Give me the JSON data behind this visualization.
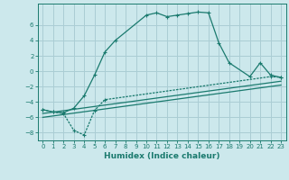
{
  "xlabel": "Humidex (Indice chaleur)",
  "bg_color": "#cce8ec",
  "grid_color": "#aacdd4",
  "line_color": "#1a7a6e",
  "xlim": [
    -0.5,
    23.5
  ],
  "ylim": [
    -9.0,
    8.8
  ],
  "xticks": [
    0,
    1,
    2,
    3,
    4,
    5,
    6,
    7,
    8,
    9,
    10,
    11,
    12,
    13,
    14,
    15,
    16,
    17,
    18,
    19,
    20,
    21,
    22,
    23
  ],
  "yticks": [
    -8,
    -6,
    -4,
    -2,
    0,
    2,
    4,
    6
  ],
  "curve1_x": [
    0,
    1,
    2,
    3,
    4,
    5,
    6,
    7,
    10,
    11,
    12,
    13,
    14,
    15,
    16,
    17,
    18,
    20,
    21,
    22,
    23
  ],
  "curve1_y": [
    -5.0,
    -5.3,
    -5.4,
    -4.8,
    -3.2,
    -0.5,
    2.5,
    4.0,
    7.3,
    7.6,
    7.1,
    7.3,
    7.5,
    7.7,
    7.6,
    3.7,
    1.1,
    -0.7,
    1.1,
    -0.5,
    -0.8
  ],
  "curve2_x": [
    0,
    1,
    2,
    3,
    4,
    5,
    6,
    22,
    23
  ],
  "curve2_y": [
    -5.0,
    -5.3,
    -5.5,
    -7.7,
    -8.3,
    -5.1,
    -3.7,
    -0.7,
    -0.8
  ],
  "line1_x": [
    0,
    23
  ],
  "line1_y": [
    -5.5,
    -1.3
  ],
  "line2_x": [
    0,
    23
  ],
  "line2_y": [
    -6.0,
    -1.8
  ]
}
